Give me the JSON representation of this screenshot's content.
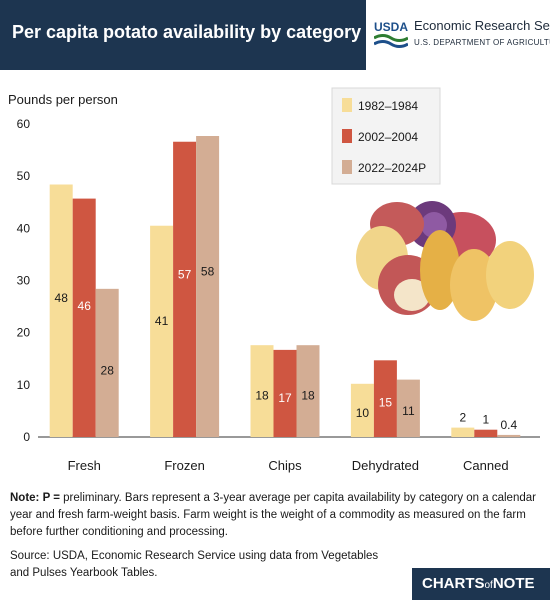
{
  "header": {
    "title": "Per capita potato availability by category",
    "usda_mark": "USDA",
    "agency": "Economic Research Service",
    "department": "U.S. DEPARTMENT OF AGRICULTURE"
  },
  "chart_data": {
    "type": "bar",
    "ylabel": "Pounds per person",
    "ylim": [
      0,
      60
    ],
    "yticks": [
      0,
      10,
      20,
      30,
      40,
      50,
      60
    ],
    "categories": [
      "Fresh",
      "Frozen",
      "Chips",
      "Dehydrated",
      "Canned"
    ],
    "series": [
      {
        "name": "1982–1984",
        "color": "#f7dd98",
        "values": [
          48.4,
          40.5,
          17.6,
          10.2,
          1.8
        ],
        "labels": [
          "48",
          "41",
          "18",
          "10",
          "2"
        ]
      },
      {
        "name": "2002–2004",
        "color": "#cf5641",
        "values": [
          45.7,
          56.6,
          16.7,
          14.7,
          1.4
        ],
        "labels": [
          "46",
          "57",
          "17",
          "15",
          "1"
        ]
      },
      {
        "name": "2022–2024P",
        "color": "#d3ad94",
        "values": [
          28.4,
          57.7,
          17.6,
          11.0,
          0.4
        ],
        "labels": [
          "28",
          "58",
          "18",
          "11",
          "0.4"
        ]
      }
    ],
    "legend_position": "top-right",
    "grid": false
  },
  "note": {
    "label": "Note: P =",
    "text": " preliminary. Bars represent a 3-year average per capita availability by category on a calendar year and fresh farm-weight basis. Farm weight is the weight of a commodity as measured on the farm before further conditioning and processing."
  },
  "source": "Source: USDA, Economic Research Service using data from Vegetables and Pulses Yearbook Tables.",
  "footer": {
    "brand_a": "CHARTS",
    "brand_of": "of",
    "brand_b": "NOTE"
  },
  "colors": {
    "header_bg": "#1d3550",
    "axis": "#333333"
  },
  "icons": {
    "potatoes": "potatoes-illustration"
  }
}
